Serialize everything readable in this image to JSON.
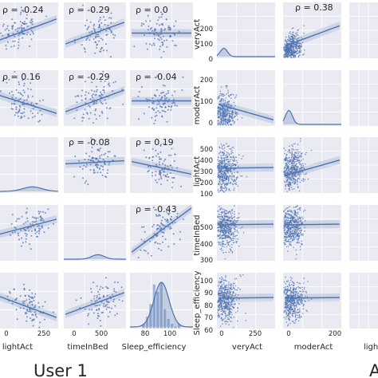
{
  "chart_data": [
    {
      "type": "scatter",
      "panel": "User 1 pair-grid (lower triangle correlation plots)",
      "columns": [
        "lightAct",
        "timeInBed",
        "Sleep_efficiency"
      ],
      "cells": [
        {
          "row": 1,
          "col": 1,
          "kind": "scatter",
          "rho": "ρ = -0.24"
        },
        {
          "row": 1,
          "col": 2,
          "kind": "scatter",
          "rho": "ρ = -0.29"
        },
        {
          "row": 1,
          "col": 3,
          "kind": "scatter",
          "rho": "ρ = 0.0"
        },
        {
          "row": 2,
          "col": 1,
          "kind": "scatter",
          "rho": "ρ = 0.16"
        },
        {
          "row": 2,
          "col": 2,
          "kind": "scatter",
          "rho": "ρ = -0.29"
        },
        {
          "row": 2,
          "col": 3,
          "kind": "scatter",
          "rho": "ρ = -0.04"
        },
        {
          "row": 3,
          "col": 1,
          "kind": "kde",
          "rho": ""
        },
        {
          "row": 3,
          "col": 2,
          "kind": "scatter",
          "rho": "ρ = -0.08"
        },
        {
          "row": 3,
          "col": 3,
          "kind": "scatter",
          "rho": "ρ = 0.19"
        },
        {
          "row": 4,
          "col": 1,
          "kind": "scatter",
          "rho": ""
        },
        {
          "row": 4,
          "col": 2,
          "kind": "kde",
          "rho": ""
        },
        {
          "row": 4,
          "col": 3,
          "kind": "scatter",
          "rho": "ρ = -0.43"
        },
        {
          "row": 5,
          "col": 1,
          "kind": "scatter",
          "rho": ""
        },
        {
          "row": 5,
          "col": 2,
          "kind": "scatter",
          "rho": ""
        },
        {
          "row": 5,
          "col": 3,
          "kind": "histogram",
          "rho": ""
        }
      ],
      "x_ticks": [
        {
          "col": 1,
          "labels": [
            "0",
            "250"
          ]
        },
        {
          "col": 2,
          "labels": [
            "0",
            "500"
          ]
        },
        {
          "col": 3,
          "labels": [
            "80",
            "100"
          ]
        }
      ],
      "xlabels": [
        "lightAct",
        "timeInBed",
        "Sleep_efficiency"
      ],
      "caption": "User 1"
    },
    {
      "type": "scatter",
      "panel": "second pair-grid",
      "columns": [
        "veryAct",
        "moderAct",
        "lightAct"
      ],
      "rows": [
        "veryAct",
        "moderAct",
        "lightAct",
        "timeInBed",
        "Sleep_efficiency"
      ],
      "y_ticks": [
        {
          "row": "veryAct",
          "labels": [
            "200",
            "100",
            "0"
          ]
        },
        {
          "row": "moderAct",
          "labels": [
            "200",
            "100",
            "0"
          ]
        },
        {
          "row": "lightAct",
          "labels": [
            "500",
            "400",
            "300",
            "200",
            "100"
          ]
        },
        {
          "row": "timeInBed",
          "labels": [
            "500",
            "400",
            "300"
          ]
        },
        {
          "row": "Sleep_efficiency",
          "labels": [
            "100",
            "90",
            "80",
            "70",
            "60"
          ]
        }
      ],
      "x_ticks": [
        {
          "col": "veryAct",
          "labels": [
            "0",
            "250"
          ]
        },
        {
          "col": "moderAct",
          "labels": [
            "0",
            "200"
          ]
        }
      ],
      "cells": [
        {
          "row": 1,
          "col": 1,
          "kind": "kde",
          "rho": ""
        },
        {
          "row": 1,
          "col": 2,
          "kind": "scatter",
          "rho": "ρ = 0.38"
        },
        {
          "row": 2,
          "col": 1,
          "kind": "scatter",
          "rho": ""
        },
        {
          "row": 2,
          "col": 2,
          "kind": "kde",
          "rho": ""
        },
        {
          "row": 3,
          "col": 1,
          "kind": "scatter",
          "rho": ""
        },
        {
          "row": 3,
          "col": 2,
          "kind": "scatter",
          "rho": ""
        },
        {
          "row": 4,
          "col": 1,
          "kind": "scatter",
          "rho": ""
        },
        {
          "row": 4,
          "col": 2,
          "kind": "scatter",
          "rho": ""
        },
        {
          "row": 5,
          "col": 1,
          "kind": "scatter",
          "rho": ""
        },
        {
          "row": 5,
          "col": 2,
          "kind": "scatter",
          "rho": ""
        }
      ],
      "xlabels": [
        "veryAct",
        "moderAct",
        "ligh"
      ],
      "cut_caption": "A"
    }
  ],
  "colors": {
    "panel_bg": "#eaeaf2",
    "grid": "#ffffff",
    "marker": "#4c72b0",
    "text": "#262626"
  }
}
